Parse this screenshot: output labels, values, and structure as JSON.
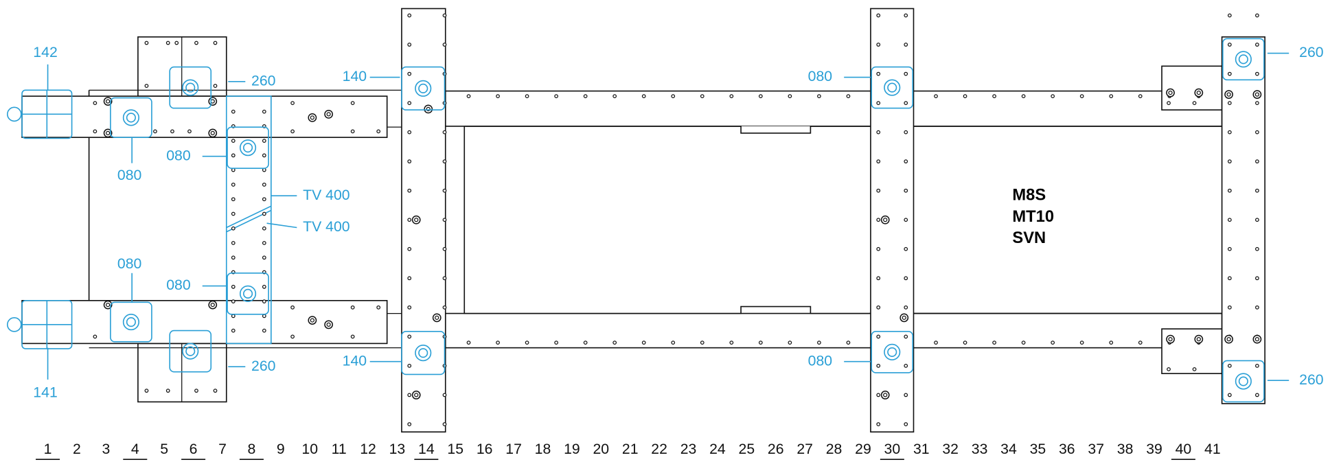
{
  "labels": [
    "142",
    "260",
    "140",
    "080",
    "260",
    "080",
    "080",
    "TV 400",
    "TV 400",
    "080",
    "080",
    "140",
    "080",
    "260",
    "260",
    "141"
  ],
  "designation": [
    "M8S",
    "MT10",
    "SVN"
  ],
  "ruler": [
    {
      "n": 1,
      "underlined": true
    },
    {
      "n": 2,
      "underlined": false
    },
    {
      "n": 3,
      "underlined": false
    },
    {
      "n": 4,
      "underlined": true
    },
    {
      "n": 5,
      "underlined": false
    },
    {
      "n": 6,
      "underlined": true
    },
    {
      "n": 7,
      "underlined": false
    },
    {
      "n": 8,
      "underlined": true
    },
    {
      "n": 9,
      "underlined": false
    },
    {
      "n": 10,
      "underlined": false
    },
    {
      "n": 11,
      "underlined": false
    },
    {
      "n": 12,
      "underlined": false
    },
    {
      "n": 13,
      "underlined": false
    },
    {
      "n": 14,
      "underlined": true
    },
    {
      "n": 15,
      "underlined": false
    },
    {
      "n": 16,
      "underlined": false
    },
    {
      "n": 17,
      "underlined": false
    },
    {
      "n": 18,
      "underlined": false
    },
    {
      "n": 19,
      "underlined": false
    },
    {
      "n": 20,
      "underlined": false
    },
    {
      "n": 21,
      "underlined": false
    },
    {
      "n": 22,
      "underlined": false
    },
    {
      "n": 23,
      "underlined": false
    },
    {
      "n": 24,
      "underlined": false
    },
    {
      "n": 25,
      "underlined": false
    },
    {
      "n": 26,
      "underlined": false
    },
    {
      "n": 27,
      "underlined": false
    },
    {
      "n": 28,
      "underlined": false
    },
    {
      "n": 29,
      "underlined": false
    },
    {
      "n": 30,
      "underlined": true
    },
    {
      "n": 31,
      "underlined": false
    },
    {
      "n": 32,
      "underlined": false
    },
    {
      "n": 33,
      "underlined": false
    },
    {
      "n": 34,
      "underlined": false
    },
    {
      "n": 35,
      "underlined": false
    },
    {
      "n": 36,
      "underlined": false
    },
    {
      "n": 37,
      "underlined": false
    },
    {
      "n": 38,
      "underlined": false
    },
    {
      "n": 39,
      "underlined": false
    },
    {
      "n": 40,
      "underlined": true
    },
    {
      "n": 41,
      "underlined": false
    }
  ]
}
